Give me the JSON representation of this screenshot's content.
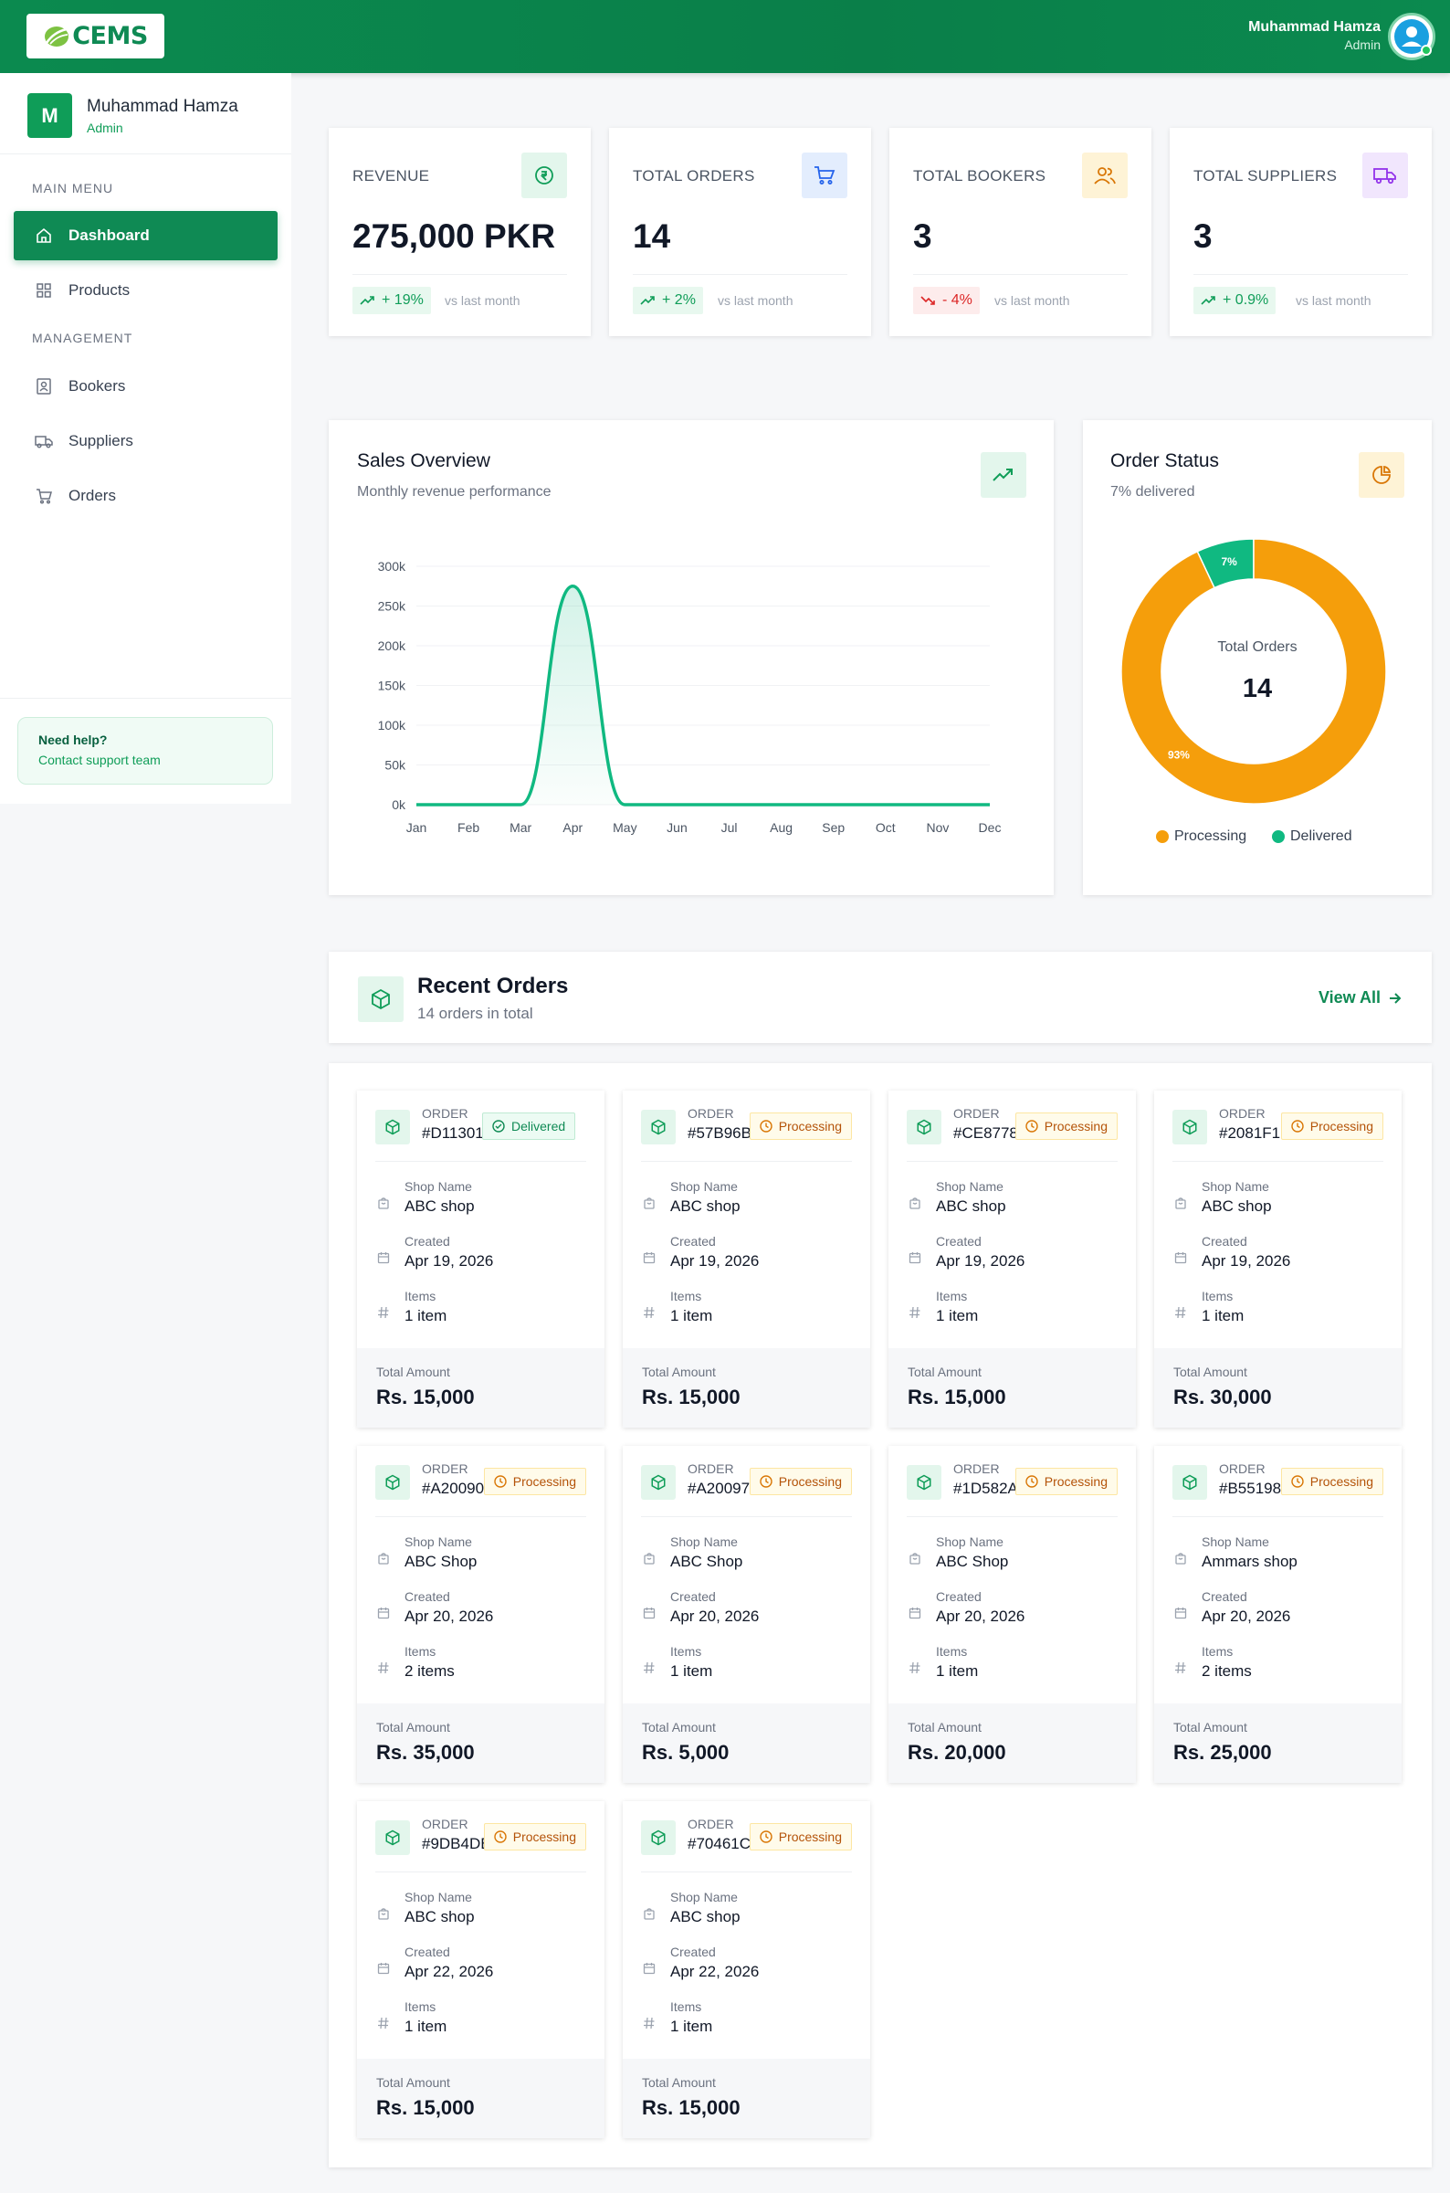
{
  "header": {
    "logo_text": "CEMS",
    "user_name": "Muhammad Hamza",
    "user_role": "Admin"
  },
  "sidebar": {
    "avatar_letter": "M",
    "user_name": "Muhammad Hamza",
    "user_role": "Admin",
    "main_menu_label": "MAIN MENU",
    "management_label": "MANAGEMENT",
    "items": [
      {
        "label": "Dashboard",
        "icon": "home-icon",
        "active": true
      },
      {
        "label": "Products",
        "icon": "grid-icon"
      },
      {
        "label": "Bookers",
        "icon": "contact-icon"
      },
      {
        "label": "Suppliers",
        "icon": "truck-icon"
      },
      {
        "label": "Orders",
        "icon": "cart-icon"
      }
    ],
    "help_title": "Need help?",
    "help_link": "Contact support team"
  },
  "stats": [
    {
      "label": "REVENUE",
      "value": "275,000 PKR",
      "change": "+ 19%",
      "direction": "up",
      "vs": "vs last month",
      "icon": "rupee-icon",
      "icon_bg": "#e3f6ec",
      "icon_color": "#0f9d58"
    },
    {
      "label": "TOTAL ORDERS",
      "value": "14",
      "change": "+ 2%",
      "direction": "up",
      "vs": "vs last month",
      "icon": "cart-icon",
      "icon_bg": "#e3edfd",
      "icon_color": "#2563eb"
    },
    {
      "label": "TOTAL BOOKERS",
      "value": "3",
      "change": "- 4%",
      "direction": "down",
      "vs": "vs last month",
      "icon": "users-icon",
      "icon_bg": "#fef3d6",
      "icon_color": "#d97706"
    },
    {
      "label": "TOTAL SUPPLIERS",
      "value": "3",
      "change": "+ 0.9%",
      "direction": "up",
      "vs": "vs last month",
      "icon": "truck-icon",
      "icon_bg": "#f1e6fd",
      "icon_color": "#9333ea"
    }
  ],
  "sales": {
    "title": "Sales Overview",
    "subtitle": "Monthly revenue performance"
  },
  "status": {
    "title": "Order Status",
    "subtitle": "7% delivered",
    "center_label": "Total Orders",
    "center_value": "14",
    "legend": [
      "Processing",
      "Delivered"
    ]
  },
  "chart_data": [
    {
      "type": "area",
      "title": "Sales Overview",
      "subtitle": "Monthly revenue performance",
      "categories": [
        "Jan",
        "Feb",
        "Mar",
        "Apr",
        "May",
        "Jun",
        "Jul",
        "Aug",
        "Sep",
        "Oct",
        "Nov",
        "Dec"
      ],
      "values": [
        0,
        0,
        0,
        275000,
        0,
        0,
        0,
        0,
        0,
        0,
        0,
        0
      ],
      "yticks": [
        "0k",
        "50k",
        "100k",
        "150k",
        "200k",
        "250k",
        "300k"
      ],
      "ylim": [
        0,
        300000
      ],
      "color": "#10b981",
      "grid": true
    },
    {
      "type": "pie",
      "title": "Order Status",
      "labels": [
        "Processing",
        "Delivered"
      ],
      "values": [
        93,
        7
      ],
      "slice_labels": [
        "93%",
        "7%"
      ],
      "colors": [
        "#f59e0b",
        "#10b981"
      ],
      "donut": true,
      "legend": "bottom"
    }
  ],
  "recent_orders": {
    "title": "Recent Orders",
    "subtitle": "14 orders in total",
    "view_all": "View All",
    "order_label": "ORDER",
    "shop_label": "Shop Name",
    "created_label": "Created",
    "items_label": "Items",
    "total_label": "Total Amount",
    "orders": [
      {
        "id": "#D11301",
        "status": "Delivered",
        "shop": "ABC shop",
        "created": "Apr 19, 2026",
        "items": "1 item",
        "total": "Rs. 15,000"
      },
      {
        "id": "#57B96B",
        "status": "Processing",
        "shop": "ABC shop",
        "created": "Apr 19, 2026",
        "items": "1 item",
        "total": "Rs. 15,000"
      },
      {
        "id": "#CE8778",
        "status": "Processing",
        "shop": "ABC shop",
        "created": "Apr 19, 2026",
        "items": "1 item",
        "total": "Rs. 15,000"
      },
      {
        "id": "#2081F1",
        "status": "Processing",
        "shop": "ABC shop",
        "created": "Apr 19, 2026",
        "items": "1 item",
        "total": "Rs. 30,000"
      },
      {
        "id": "#A20090",
        "status": "Processing",
        "shop": "ABC Shop",
        "created": "Apr 20, 2026",
        "items": "2 items",
        "total": "Rs. 35,000"
      },
      {
        "id": "#A20097",
        "status": "Processing",
        "shop": "ABC Shop",
        "created": "Apr 20, 2026",
        "items": "1 item",
        "total": "Rs. 5,000"
      },
      {
        "id": "#1D582A",
        "status": "Processing",
        "shop": "ABC Shop",
        "created": "Apr 20, 2026",
        "items": "1 item",
        "total": "Rs. 20,000"
      },
      {
        "id": "#B55198",
        "status": "Processing",
        "shop": "Ammars shop",
        "created": "Apr 20, 2026",
        "items": "2 items",
        "total": "Rs. 25,000"
      },
      {
        "id": "#9DB4DB",
        "status": "Processing",
        "shop": "ABC shop",
        "created": "Apr 22, 2026",
        "items": "1 item",
        "total": "Rs. 15,000"
      },
      {
        "id": "#70461C",
        "status": "Processing",
        "shop": "ABC shop",
        "created": "Apr 22, 2026",
        "items": "1 item",
        "total": "Rs. 15,000"
      }
    ]
  }
}
